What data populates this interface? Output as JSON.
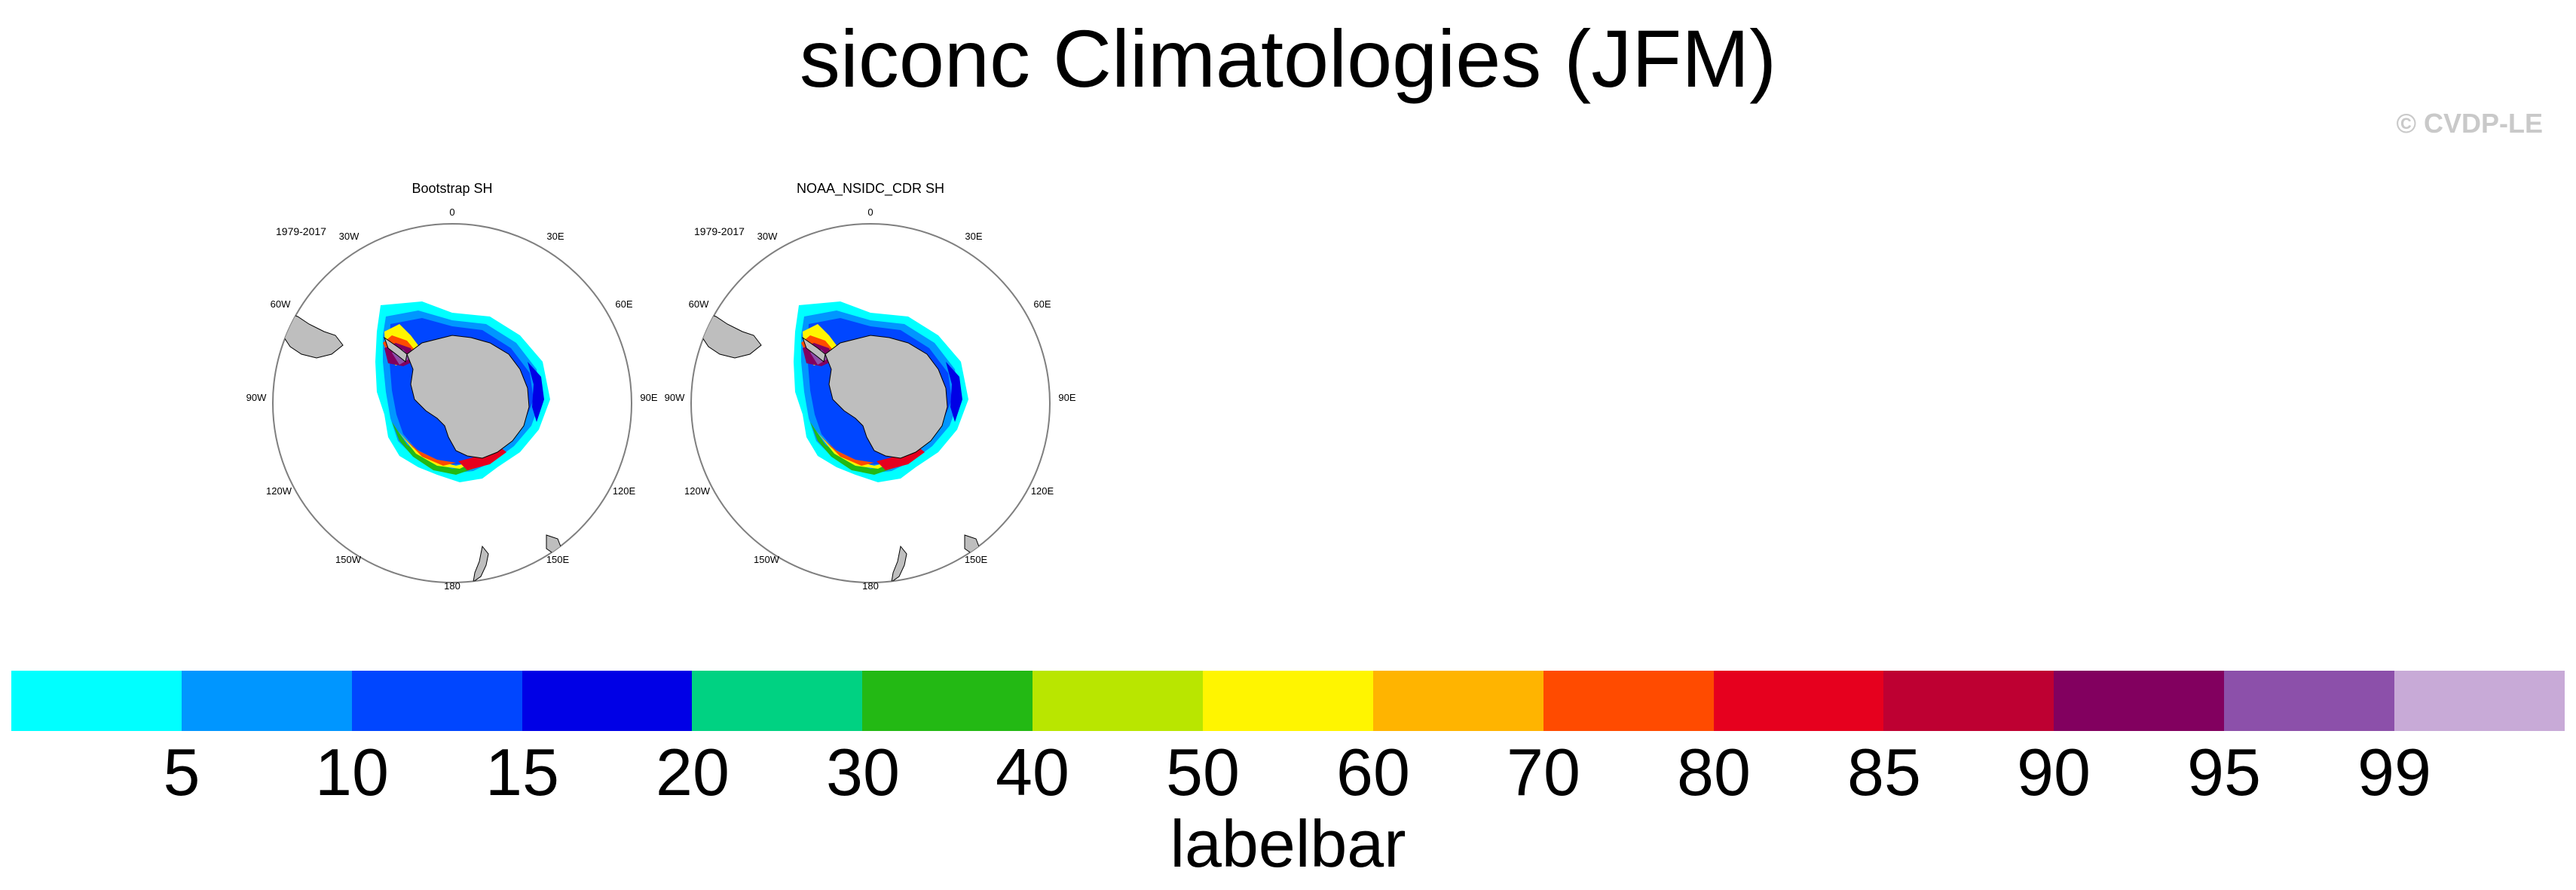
{
  "title": "siconc Climatologies (JFM)",
  "copyright": "© CVDP-LE",
  "panels": [
    {
      "title": "Bootstrap SH",
      "period": "1979-2017",
      "lon_labels": [
        "0",
        "30E",
        "60E",
        "90E",
        "120E",
        "150E",
        "180",
        "150W",
        "120W",
        "90W",
        "60W",
        "30W"
      ]
    },
    {
      "title": "NOAA_NSIDC_CDR SH",
      "period": "1979-2017",
      "lon_labels": [
        "0",
        "30E",
        "60E",
        "90E",
        "120E",
        "150E",
        "180",
        "150W",
        "120W",
        "90W",
        "60W",
        "30W"
      ]
    }
  ],
  "colorbar": {
    "title": "labelbar",
    "ticks": [
      "5",
      "10",
      "15",
      "20",
      "30",
      "40",
      "50",
      "60",
      "70",
      "80",
      "85",
      "90",
      "95",
      "99"
    ],
    "colors": [
      "#00ffff",
      "#0096ff",
      "#0046ff",
      "#0000e6",
      "#00d282",
      "#23b914",
      "#b9e600",
      "#fff500",
      "#ffb400",
      "#ff4b00",
      "#e6001e",
      "#be0032",
      "#82005f",
      "#8c50aa",
      "#c8aad7"
    ]
  },
  "colors": {
    "land": "#bebebe",
    "ocean": "#ffffff",
    "coastline": "#000000",
    "ring": "#7f7f7f"
  }
}
